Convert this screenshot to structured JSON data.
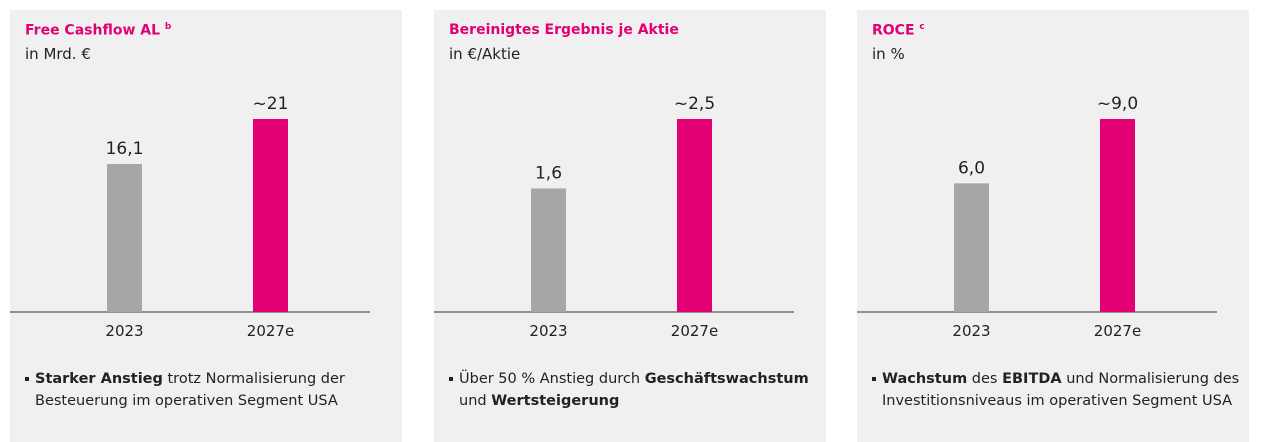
{
  "chart_data": [
    {
      "type": "bar",
      "title": "Free Cashflow AL",
      "title_footnote": "b",
      "subtitle": "in Mrd. €",
      "categories": [
        "2023",
        "2027e"
      ],
      "values": [
        16.1,
        21
      ],
      "value_labels": [
        "16,1",
        "~21"
      ],
      "colors": [
        "#a6a6a6",
        "#e20074"
      ],
      "note": [
        {
          "text": "Starker Anstieg",
          "bold": true
        },
        {
          "text": " trotz Normalisierung der Besteuerung im operativen Segment USA",
          "bold": false
        }
      ]
    },
    {
      "type": "bar",
      "title": "Bereinigtes Ergebnis je Aktie",
      "subtitle": "in €/Aktie",
      "categories": [
        "2023",
        "2027e"
      ],
      "values": [
        1.6,
        2.5
      ],
      "value_labels": [
        "1,6",
        "~2,5"
      ],
      "colors": [
        "#a6a6a6",
        "#e20074"
      ],
      "note": [
        {
          "text": "Über 50 % Anstieg durch ",
          "bold": false
        },
        {
          "text": "Geschäftswachstum",
          "bold": true
        },
        {
          "text": " und ",
          "bold": false
        },
        {
          "text": "Wertsteigerung",
          "bold": true
        }
      ]
    },
    {
      "type": "bar",
      "title": "ROCE",
      "title_footnote": "c",
      "subtitle": "in %",
      "categories": [
        "2023",
        "2027e"
      ],
      "values": [
        6.0,
        9.0
      ],
      "value_labels": [
        "6,0",
        "~9,0"
      ],
      "colors": [
        "#a6a6a6",
        "#e20074"
      ],
      "note": [
        {
          "text": "Wachstum",
          "bold": true
        },
        {
          "text": " des ",
          "bold": false
        },
        {
          "text": "EBITDA",
          "bold": true
        },
        {
          "text": " und Normalisierung des Investitionsniveaus im operativen Segment USA",
          "bold": false
        }
      ]
    }
  ]
}
